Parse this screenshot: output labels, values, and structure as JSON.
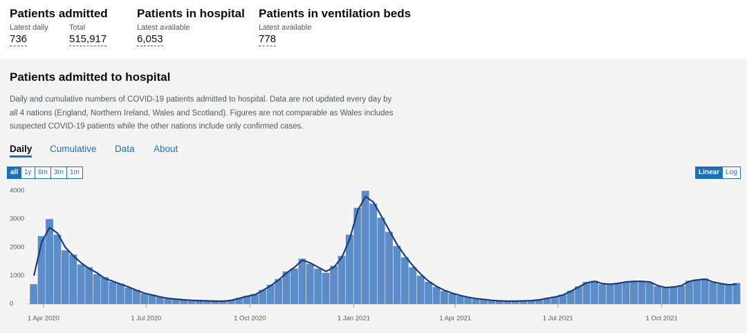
{
  "header": {
    "stats": [
      {
        "title": "Patients admitted",
        "items": [
          {
            "label": "Latest daily",
            "value": "736"
          },
          {
            "label": "Total",
            "value": "515,917"
          }
        ]
      },
      {
        "title": "Patients in hospital",
        "items": [
          {
            "label": "Latest available",
            "value": "6,053"
          }
        ]
      },
      {
        "title": "Patients in ventilation beds",
        "items": [
          {
            "label": "Latest available",
            "value": "778"
          }
        ]
      }
    ]
  },
  "card": {
    "title": "Patients admitted to hospital",
    "description": [
      "Daily and cumulative numbers of COVID-19 patients admitted to hospital. Data are not updated every day by",
      "all 4 nations (England, Northern Ireland, Wales and Scotland). Figures are not comparable as Wales includes",
      "suspected COVID-19 patients while the other nations include only confirmed cases."
    ],
    "tabs": [
      "Daily",
      "Cumulative",
      "Data",
      "About"
    ],
    "ranges": [
      "all",
      "1y",
      "6m",
      "3m",
      "1m"
    ],
    "scales": [
      "Linear",
      "Log"
    ]
  },
  "chart_data": {
    "type": "bar",
    "x": [
      "2020-03-20",
      "2020-03-27",
      "2020-04-03",
      "2020-04-10",
      "2020-04-17",
      "2020-04-24",
      "2020-05-01",
      "2020-05-08",
      "2020-05-15",
      "2020-05-22",
      "2020-05-29",
      "2020-06-05",
      "2020-06-12",
      "2020-06-19",
      "2020-06-26",
      "2020-07-03",
      "2020-07-10",
      "2020-07-17",
      "2020-07-24",
      "2020-07-31",
      "2020-08-07",
      "2020-08-14",
      "2020-08-21",
      "2020-08-28",
      "2020-09-04",
      "2020-09-11",
      "2020-09-18",
      "2020-09-25",
      "2020-10-02",
      "2020-10-09",
      "2020-10-16",
      "2020-10-23",
      "2020-10-30",
      "2020-11-06",
      "2020-11-13",
      "2020-11-20",
      "2020-11-27",
      "2020-12-04",
      "2020-12-11",
      "2020-12-18",
      "2020-12-25",
      "2021-01-01",
      "2021-01-08",
      "2021-01-15",
      "2021-01-22",
      "2021-01-29",
      "2021-02-05",
      "2021-02-12",
      "2021-02-19",
      "2021-02-26",
      "2021-03-05",
      "2021-03-12",
      "2021-03-19",
      "2021-03-26",
      "2021-04-02",
      "2021-04-09",
      "2021-04-16",
      "2021-04-23",
      "2021-04-30",
      "2021-05-07",
      "2021-05-14",
      "2021-05-21",
      "2021-05-28",
      "2021-06-04",
      "2021-06-11",
      "2021-06-18",
      "2021-06-25",
      "2021-07-02",
      "2021-07-09",
      "2021-07-16",
      "2021-07-23",
      "2021-07-30",
      "2021-08-06",
      "2021-08-13",
      "2021-08-20",
      "2021-08-27",
      "2021-09-03",
      "2021-09-10",
      "2021-09-17",
      "2021-09-24",
      "2021-10-01",
      "2021-10-08",
      "2021-10-15",
      "2021-10-22",
      "2021-10-29",
      "2021-11-05",
      "2021-11-12",
      "2021-11-19",
      "2021-11-26",
      "2021-12-03"
    ],
    "series": [
      {
        "type": "bar",
        "color": "#5b8cc8",
        "values": [
          700,
          2400,
          3000,
          2450,
          1900,
          1750,
          1400,
          1300,
          1050,
          950,
          780,
          720,
          580,
          500,
          370,
          330,
          240,
          210,
          160,
          150,
          125,
          120,
          105,
          100,
          105,
          140,
          210,
          290,
          350,
          500,
          680,
          880,
          1150,
          1250,
          1600,
          1420,
          1250,
          1100,
          1350,
          1700,
          2450,
          3400,
          4000,
          3550,
          3050,
          2550,
          2050,
          1650,
          1300,
          1000,
          780,
          600,
          460,
          370,
          290,
          230,
          180,
          150,
          125,
          105,
          95,
          100,
          110,
          125,
          155,
          210,
          260,
          330,
          470,
          620,
          780,
          820,
          700,
          690,
          740,
          790,
          820,
          790,
          760,
          630,
          570,
          610,
          640,
          820,
          870,
          900,
          770,
          700,
          670,
          740
        ]
      },
      {
        "type": "line",
        "color": "#1d3b72",
        "values": [
          1000,
          2200,
          2700,
          2500,
          2000,
          1700,
          1450,
          1250,
          1100,
          900,
          800,
          700,
          600,
          480,
          380,
          320,
          250,
          200,
          170,
          150,
          130,
          120,
          110,
          100,
          100,
          130,
          200,
          270,
          330,
          480,
          650,
          850,
          1100,
          1300,
          1550,
          1450,
          1300,
          1150,
          1300,
          1650,
          2300,
          3300,
          3800,
          3600,
          3100,
          2600,
          2100,
          1700,
          1350,
          1050,
          800,
          620,
          480,
          380,
          300,
          240,
          190,
          160,
          130,
          110,
          100,
          100,
          110,
          120,
          150,
          200,
          250,
          320,
          450,
          600,
          750,
          800,
          720,
          700,
          730,
          780,
          800,
          800,
          780,
          650,
          580,
          600,
          650,
          800,
          850,
          880,
          780,
          720,
          680,
          700
        ]
      }
    ],
    "xlim": [
      "2020-03-18",
      "2021-12-07"
    ],
    "xticks": [
      {
        "value": "2020-04-01",
        "label": "1 Apr 2020"
      },
      {
        "value": "2020-07-01",
        "label": "1 Jul 2020"
      },
      {
        "value": "2020-10-01",
        "label": "1 Oct 2020"
      },
      {
        "value": "2021-01-01",
        "label": "1 Jan 2021"
      },
      {
        "value": "2021-04-01",
        "label": "1 Apr 2021"
      },
      {
        "value": "2021-07-01",
        "label": "1 Jul 2021"
      },
      {
        "value": "2021-10-01",
        "label": "1 Oct 2021"
      }
    ],
    "ylim": [
      0,
      4200
    ],
    "yticks": [
      0,
      1000,
      2000,
      3000,
      4000
    ],
    "grid": false
  }
}
